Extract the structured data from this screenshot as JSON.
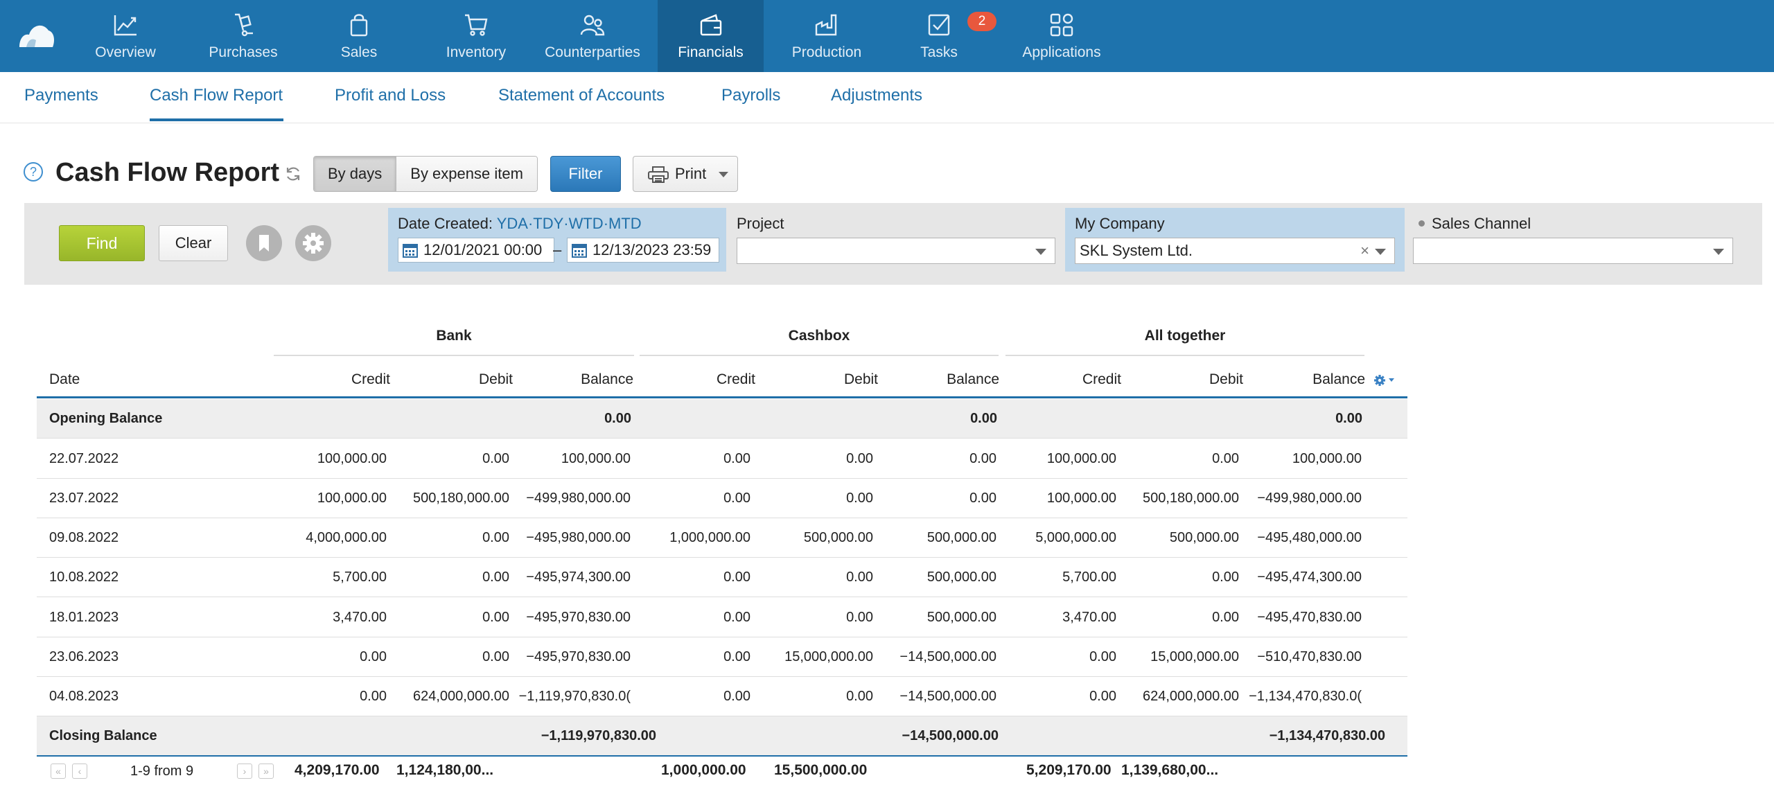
{
  "nav": {
    "items": [
      {
        "label": "Overview",
        "icon": "chart-line-icon"
      },
      {
        "label": "Purchases",
        "icon": "cart-dolly-icon"
      },
      {
        "label": "Sales",
        "icon": "shopping-bag-icon"
      },
      {
        "label": "Inventory",
        "icon": "cart-icon"
      },
      {
        "label": "Counterparties",
        "icon": "people-icon"
      },
      {
        "label": "Financials",
        "icon": "wallet-icon"
      },
      {
        "label": "Production",
        "icon": "factory-icon"
      },
      {
        "label": "Tasks",
        "icon": "checkbox-icon"
      },
      {
        "label": "Applications",
        "icon": "apps-grid-icon"
      }
    ],
    "active": "Financials",
    "tasks_badge": "2"
  },
  "subnav": {
    "tabs": [
      {
        "label": "Payments"
      },
      {
        "label": "Cash Flow Report"
      },
      {
        "label": "Profit and Loss"
      },
      {
        "label": "Statement of Accounts"
      },
      {
        "label": "Payrolls"
      },
      {
        "label": "Adjustments"
      }
    ],
    "active": "Cash Flow Report"
  },
  "toolbar": {
    "help": "?",
    "title": "Cash Flow Report",
    "by_days": "By days",
    "by_expense_item": "By expense item",
    "filter": "Filter",
    "print": "Print"
  },
  "filters": {
    "find": "Find",
    "clear": "Clear",
    "date_created_label": "Date Created:",
    "quick": {
      "yda": "YDA",
      "tdy": "TDY",
      "wtd": "WTD",
      "mtd": "MTD",
      "sep": "·"
    },
    "date_from": "12/01/2021 00:00",
    "date_to": "12/13/2023 23:59",
    "date_dash": "–",
    "project_label": "Project",
    "project_value": "",
    "company_label": "My Company",
    "company_value": "SKL System Ltd.",
    "company_clear": "×",
    "sales_channel_label": "Sales Channel",
    "sales_channel_value": ""
  },
  "table": {
    "groups": {
      "bank": "Bank",
      "cashbox": "Cashbox",
      "all": "All together"
    },
    "columns": {
      "date": "Date",
      "credit": "Credit",
      "debit": "Debit",
      "balance": "Balance"
    },
    "opening": {
      "label": "Opening Balance",
      "bank": "0.00",
      "cashbox": "0.00",
      "all": "0.00"
    },
    "rows": [
      {
        "date": "22.07.2022",
        "c1": "100,000.00",
        "d1": "0.00",
        "b1": "100,000.00",
        "c2": "0.00",
        "d2": "0.00",
        "b2": "0.00",
        "c3": "100,000.00",
        "d3": "0.00",
        "b3": "100,000.00"
      },
      {
        "date": "23.07.2022",
        "c1": "100,000.00",
        "d1": "500,180,000.00",
        "b1": "−499,980,000.00",
        "c2": "0.00",
        "d2": "0.00",
        "b2": "0.00",
        "c3": "100,000.00",
        "d3": "500,180,000.00",
        "b3": "−499,980,000.00"
      },
      {
        "date": "09.08.2022",
        "c1": "4,000,000.00",
        "d1": "0.00",
        "b1": "−495,980,000.00",
        "c2": "1,000,000.00",
        "d2": "500,000.00",
        "b2": "500,000.00",
        "c3": "5,000,000.00",
        "d3": "500,000.00",
        "b3": "−495,480,000.00"
      },
      {
        "date": "10.08.2022",
        "c1": "5,700.00",
        "d1": "0.00",
        "b1": "−495,974,300.00",
        "c2": "0.00",
        "d2": "0.00",
        "b2": "500,000.00",
        "c3": "5,700.00",
        "d3": "0.00",
        "b3": "−495,474,300.00"
      },
      {
        "date": "18.01.2023",
        "c1": "3,470.00",
        "d1": "0.00",
        "b1": "−495,970,830.00",
        "c2": "0.00",
        "d2": "0.00",
        "b2": "500,000.00",
        "c3": "3,470.00",
        "d3": "0.00",
        "b3": "−495,470,830.00"
      },
      {
        "date": "23.06.2023",
        "c1": "0.00",
        "d1": "0.00",
        "b1": "−495,970,830.00",
        "c2": "0.00",
        "d2": "15,000,000.00",
        "b2": "−14,500,000.00",
        "c3": "0.00",
        "d3": "15,000,000.00",
        "b3": "−510,470,830.00"
      },
      {
        "date": "04.08.2023",
        "c1": "0.00",
        "d1": "624,000,000.00",
        "b1": "−1,119,970,830.0(",
        "c2": "0.00",
        "d2": "0.00",
        "b2": "−14,500,000.00",
        "c3": "0.00",
        "d3": "624,000,000.00",
        "b3": "−1,134,470,830.0("
      }
    ],
    "closing": {
      "label": "Closing Balance",
      "bank": "−1,119,970,830.00",
      "cashbox": "−14,500,000.00",
      "all": "−1,134,470,830.00"
    }
  },
  "footer": {
    "first": "«",
    "prev": "‹",
    "next": "›",
    "last": "»",
    "range": "1-9 from 9",
    "bank_credit": "4,209,170.00",
    "bank_debit": "1,124,180,00...",
    "cash_credit": "1,000,000.00",
    "cash_debit": "15,500,000.00",
    "all_credit": "5,209,170.00",
    "all_debit": "1,139,680,00..."
  }
}
